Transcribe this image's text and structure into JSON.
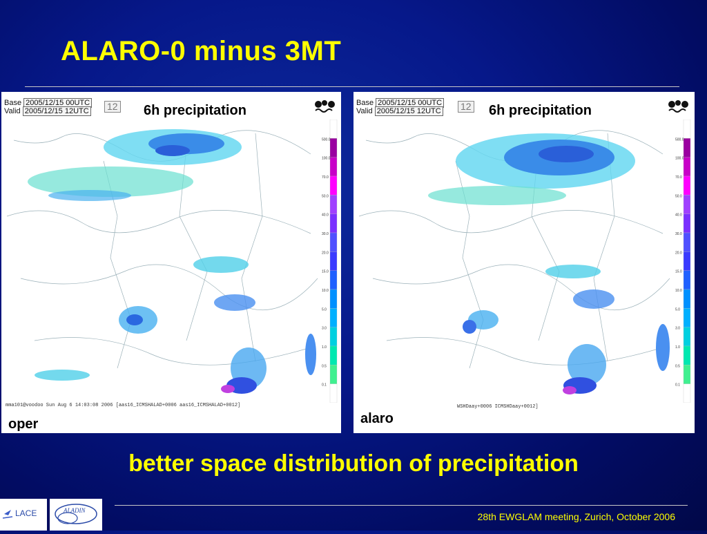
{
  "slide": {
    "title": "ALARO-0 minus 3MT",
    "subtitle": "better space distribution of precipitation",
    "footer": "28th EWGLAM meeting, Zurich, October 2006"
  },
  "panels": [
    {
      "label": "oper",
      "chart_title": "6h precipitation",
      "base_label": "Base",
      "base_value": "2005/12/15 00UTC",
      "valid_label": "Valid",
      "valid_value": "2005/12/15 12UTC",
      "forecast_hour": "12",
      "credit": "mma101@voodoo Sun Aug  6 14:03:08 2006 [aas16_ICMSHALAD+0006 aas16_ICMSHALAD+0012]"
    },
    {
      "label": "alaro",
      "chart_title": "6h precipitation",
      "base_label": "Base",
      "base_value": "2005/12/15 00UTC",
      "valid_label": "Valid",
      "valid_value": "2005/12/15 12UTC",
      "forecast_hour": "12",
      "credit": "WSHDaay+0006 ICMSHDaay+0012]"
    }
  ],
  "colorbar_ticks": [
    "500.0",
    "100.0",
    "70.0",
    "50.0",
    "40.0",
    "30.0",
    "20.0",
    "15.0",
    "10.0",
    "5.0",
    "3.0",
    "1.0",
    "0.5",
    "0.1"
  ],
  "colorbar_colors": [
    "#ffffff",
    "#9a00a0",
    "#c800c8",
    "#ff00ff",
    "#a040ff",
    "#7a30ff",
    "#5050ff",
    "#3a3aff",
    "#2060ff",
    "#0090ff",
    "#00b0ff",
    "#00d0e0",
    "#00e8b0",
    "#40f090",
    "#ffffff"
  ],
  "logos": {
    "lace_text": "LACE",
    "aladin_text": "ALADIN"
  }
}
